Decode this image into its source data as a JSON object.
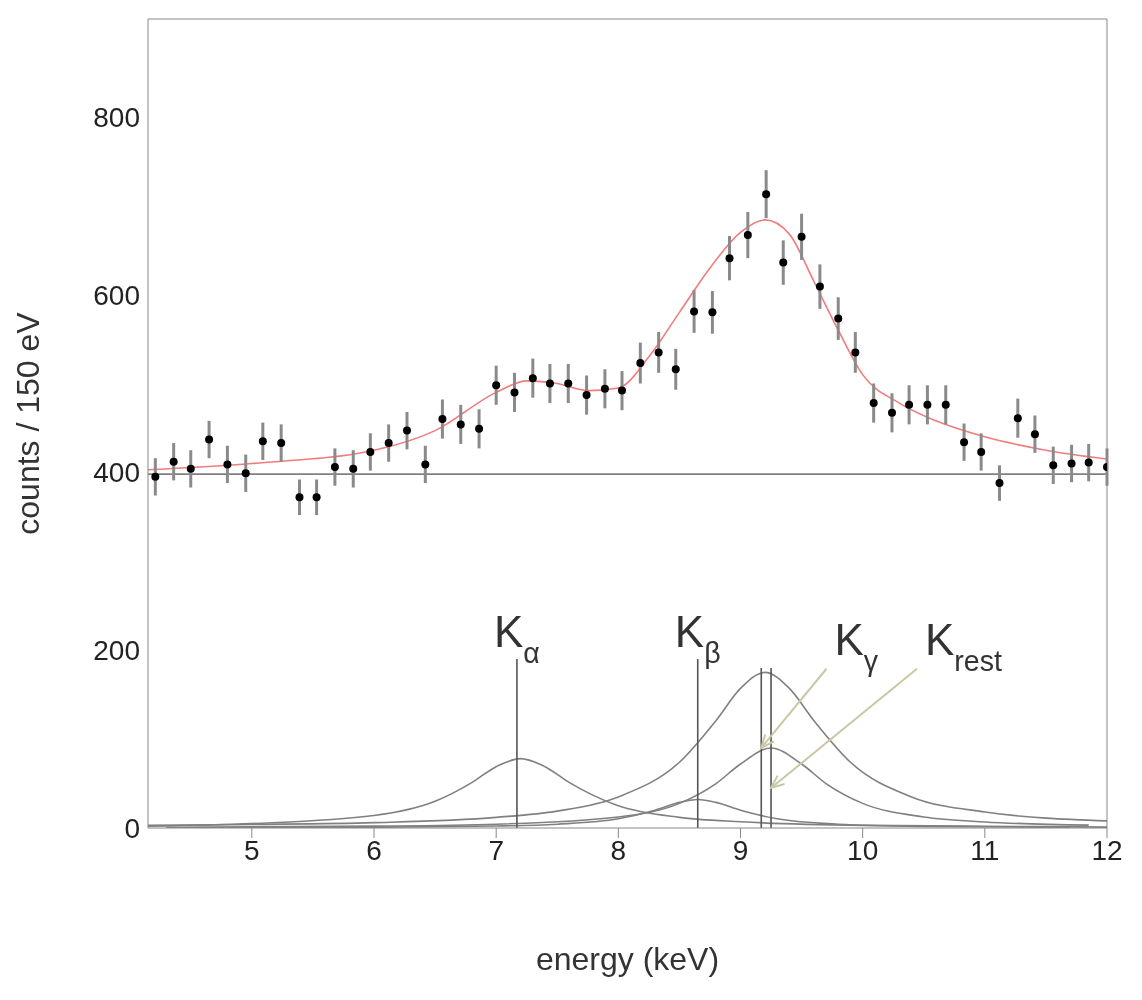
{
  "chart_data": {
    "type": "scatter",
    "xlabel": "energy (keV)",
    "ylabel": "counts / 150 eV",
    "xlim": [
      4.15,
      12
    ],
    "xticks": [
      5,
      6,
      7,
      8,
      9,
      10,
      11,
      12
    ],
    "ylim": [
      0,
      910
    ],
    "yticks": [
      0,
      200,
      400,
      600,
      800
    ],
    "line_style": "solid",
    "series": [
      {
        "color": "#000000",
        "marker": "circle",
        "x": [
          4.21,
          4.36,
          4.5,
          4.65,
          4.8,
          4.95,
          5.09,
          5.24,
          5.39,
          5.53,
          5.68,
          5.83,
          5.97,
          6.12,
          6.27,
          6.42,
          6.56,
          6.71,
          6.86,
          7.0,
          7.15,
          7.3,
          7.44,
          7.59,
          7.74,
          7.89,
          8.03,
          8.18,
          8.33,
          8.47,
          8.62,
          8.77,
          8.91,
          9.06,
          9.21,
          9.35,
          9.5,
          9.65,
          9.8,
          9.94,
          10.09,
          10.24,
          10.38,
          10.53,
          10.68,
          10.83,
          10.97,
          11.12,
          11.27,
          11.41,
          11.56,
          11.71,
          11.85,
          12.0
        ],
        "values": [
          395,
          412,
          404,
          437,
          409,
          399,
          435,
          433,
          372,
          372,
          406,
          404,
          423,
          433,
          447,
          409,
          460,
          454,
          449,
          498,
          490,
          506,
          500,
          500,
          487,
          494,
          492,
          523,
          535,
          516,
          581,
          580,
          641,
          667,
          713,
          636,
          665,
          609,
          573,
          535,
          478,
          467,
          476,
          476,
          476,
          434,
          423,
          388,
          461,
          443,
          408,
          410,
          411,
          406
        ],
        "errors": [
          21,
          21,
          21,
          21,
          21,
          21,
          21,
          21,
          20,
          20,
          21,
          21,
          21,
          21,
          21,
          21,
          22,
          22,
          22,
          22,
          22,
          22,
          22,
          22,
          22,
          22,
          22,
          23,
          23,
          23,
          24,
          24,
          25,
          26,
          27,
          25,
          26,
          25,
          24,
          23,
          22,
          22,
          22,
          22,
          22,
          21,
          21,
          20,
          22,
          21,
          21,
          21,
          21,
          21
        ]
      },
      {
        "type": "line",
        "marker": "none",
        "color": "#f07c7c",
        "x": [
          4.15,
          5,
          6,
          6.5,
          7,
          7.25,
          7.5,
          7.75,
          8,
          8.25,
          8.5,
          8.75,
          9,
          9.2,
          9.4,
          9.6,
          9.8,
          10,
          10.3,
          10.6,
          11,
          11.5,
          12
        ],
        "values": [
          403,
          410,
          425,
          447,
          490,
          503,
          500,
          492,
          495,
          530,
          580,
          630,
          670,
          684,
          668,
          615,
          560,
          510,
          478,
          458,
          440,
          425,
          415
        ]
      },
      {
        "type": "line",
        "marker": "none",
        "color": "#808080",
        "x": [
          4.15,
          12
        ],
        "values": [
          398,
          398
        ]
      },
      {
        "type": "line",
        "marker": "none",
        "color": "#808080",
        "x": [
          4.15,
          5,
          6,
          6.5,
          6.8,
          7,
          7.2,
          7.4,
          7.6,
          8,
          8.5,
          9,
          10,
          11,
          12
        ],
        "values": [
          2,
          5,
          14,
          30,
          51,
          69,
          78,
          69,
          51,
          25,
          12,
          7,
          3,
          2,
          1
        ]
      },
      {
        "type": "line",
        "marker": "none",
        "color": "#808080",
        "x": [
          4.15,
          5,
          6,
          7,
          7.5,
          8,
          8.5,
          8.8,
          9,
          9.2,
          9.4,
          9.6,
          9.9,
          10.4,
          11,
          12
        ],
        "values": [
          3,
          4,
          6,
          12,
          19,
          35,
          74,
          121,
          157,
          175,
          157,
          121,
          74,
          35,
          18,
          8
        ]
      },
      {
        "type": "line",
        "marker": "none",
        "color": "#808080",
        "x": [
          4.3,
          6,
          7,
          8,
          8.5,
          8.8,
          9,
          9.25,
          9.5,
          9.7,
          10,
          10.5,
          11,
          11.85
        ],
        "values": [
          0.9,
          2.1,
          4.3,
          12.4,
          27.7,
          50,
          72,
          90,
          72,
          50,
          27.7,
          12.4,
          6.8,
          3.2
        ]
      },
      {
        "type": "line",
        "marker": "none",
        "color": "#808080",
        "x": [
          4.45,
          6,
          7,
          7.5,
          8,
          8.3,
          8.5,
          8.65,
          8.8,
          9,
          9.3,
          9.8,
          10.5,
          11.7
        ],
        "values": [
          0.3,
          0.9,
          2.2,
          4.3,
          10.4,
          20,
          28.8,
          32,
          28.8,
          20,
          10.4,
          4.3,
          1.8,
          0.7
        ]
      },
      {
        "type": "line",
        "marker": "none",
        "color": "#555555",
        "x": [
          7.17,
          7.17
        ],
        "values": [
          0,
          190
        ]
      },
      {
        "type": "line",
        "marker": "none",
        "color": "#555555",
        "x": [
          8.65,
          8.65
        ],
        "values": [
          0,
          190
        ]
      },
      {
        "type": "line",
        "marker": "none",
        "color": "#555555",
        "x": [
          9.17,
          9.17
        ],
        "values": [
          0,
          180
        ]
      },
      {
        "type": "line",
        "marker": "none",
        "color": "#555555",
        "x": [
          9.25,
          9.25
        ],
        "values": [
          0,
          180
        ]
      }
    ],
    "annotations": [
      {
        "text": "K$_{α}$",
        "x": 7.17,
        "y": 190
      },
      {
        "text": "K$_{β}$",
        "x": 8.65,
        "y": 190
      },
      {
        "text": "K$_{γ}$",
        "x": 9.17,
        "y": 90
      },
      {
        "text": "K$_{rest}$",
        "x": 9.25,
        "y": 45
      }
    ]
  }
}
